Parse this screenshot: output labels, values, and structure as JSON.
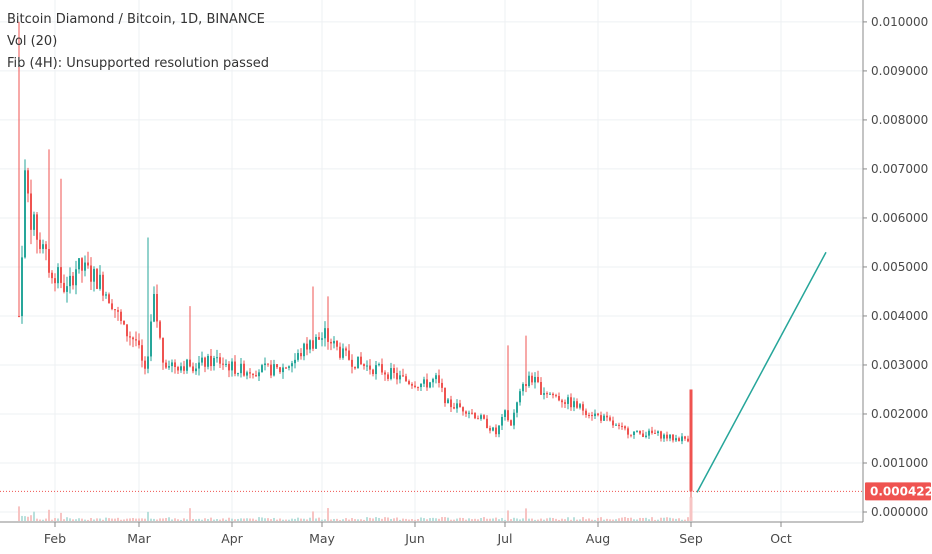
{
  "legend": {
    "title": "Bitcoin Diamond / Bitcoin, 1D, BINANCE",
    "volume": "Vol (20)",
    "fib": "Fib (4H): Unsupported resolution passed"
  },
  "colors": {
    "up": "#26a69a",
    "down": "#ef5350",
    "grid": "#eef0f3",
    "projection": "#26a69a",
    "last_price": "#ef5350",
    "volume_up": "#b8e0dc",
    "volume_down": "#f7c4c3"
  },
  "chart_data": {
    "type": "candlestick",
    "title": "Bitcoin Diamond / Bitcoin, 1D, BINANCE",
    "x_labels": [
      "Feb",
      "Mar",
      "Apr",
      "May",
      "Jun",
      "Jul",
      "Aug",
      "Sep",
      "Oct"
    ],
    "y_labels": [
      "0.000000",
      "0.001000",
      "0.002000",
      "0.003000",
      "0.004000",
      "0.005000",
      "0.006000",
      "0.007000",
      "0.008000",
      "0.009000",
      "0.010000"
    ],
    "ylim": [
      0,
      0.0101
    ],
    "last_price": "0.000422",
    "price_path": [
      [
        "2018-01-20",
        0.004
      ],
      [
        "2018-01-22",
        0.0068
      ],
      [
        "2018-01-24",
        0.006
      ],
      [
        "2018-01-27",
        0.0055
      ],
      [
        "2018-01-30",
        0.005
      ],
      [
        "2018-02-02",
        0.0048
      ],
      [
        "2018-02-05",
        0.0045
      ],
      [
        "2018-02-08",
        0.005
      ],
      [
        "2018-02-12",
        0.0049
      ],
      [
        "2018-02-16",
        0.0047
      ],
      [
        "2018-02-20",
        0.0043
      ],
      [
        "2018-02-24",
        0.0037
      ],
      [
        "2018-02-28",
        0.0035
      ],
      [
        "2018-03-03",
        0.0028
      ],
      [
        "2018-03-06",
        0.0043
      ],
      [
        "2018-03-09",
        0.0031
      ],
      [
        "2018-03-13",
        0.003
      ],
      [
        "2018-03-20",
        0.003
      ],
      [
        "2018-03-27",
        0.0031
      ],
      [
        "2018-04-03",
        0.0029
      ],
      [
        "2018-04-10",
        0.0029
      ],
      [
        "2018-04-17",
        0.0029
      ],
      [
        "2018-04-22",
        0.0031
      ],
      [
        "2018-04-26",
        0.0034
      ],
      [
        "2018-05-02",
        0.0036
      ],
      [
        "2018-05-05",
        0.0034
      ],
      [
        "2018-05-08",
        0.0032
      ],
      [
        "2018-05-14",
        0.003
      ],
      [
        "2018-05-21",
        0.0029
      ],
      [
        "2018-05-28",
        0.0027
      ],
      [
        "2018-06-04",
        0.0026
      ],
      [
        "2018-06-08",
        0.0027
      ],
      [
        "2018-06-12",
        0.0022
      ],
      [
        "2018-06-18",
        0.0021
      ],
      [
        "2018-06-23",
        0.0019
      ],
      [
        "2018-06-28",
        0.0016
      ],
      [
        "2018-07-01",
        0.002
      ],
      [
        "2018-07-03",
        0.0018
      ],
      [
        "2018-07-06",
        0.0024
      ],
      [
        "2018-07-09",
        0.0028
      ],
      [
        "2018-07-13",
        0.0025
      ],
      [
        "2018-07-20",
        0.0023
      ],
      [
        "2018-07-27",
        0.0021
      ],
      [
        "2018-08-03",
        0.0019
      ],
      [
        "2018-08-08",
        0.0017
      ],
      [
        "2018-08-14",
        0.0016
      ],
      [
        "2018-08-20",
        0.0016
      ],
      [
        "2018-08-26",
        0.0015
      ],
      [
        "2018-08-31",
        0.0015
      ]
    ],
    "spikes": [
      [
        "2018-01-20",
        0.01
      ],
      [
        "2018-01-30",
        0.0074
      ],
      [
        "2018-02-03",
        0.0068
      ],
      [
        "2018-03-04",
        0.0056
      ],
      [
        "2018-03-18",
        0.0042
      ],
      [
        "2018-04-28",
        0.0046
      ],
      [
        "2018-05-03",
        0.0044
      ],
      [
        "2018-07-02",
        0.0034
      ],
      [
        "2018-07-08",
        0.0036
      ]
    ],
    "final_candle": {
      "date": "2018-09-01",
      "open": 0.0025,
      "high": 0.0025,
      "low": 0.0003,
      "close": 0.00042
    },
    "projection": {
      "from": [
        "2018-09-03",
        0.0004
      ],
      "to": [
        "2018-10-16",
        0.0053
      ]
    },
    "grid": true,
    "volume_series": "Vol (20)"
  }
}
